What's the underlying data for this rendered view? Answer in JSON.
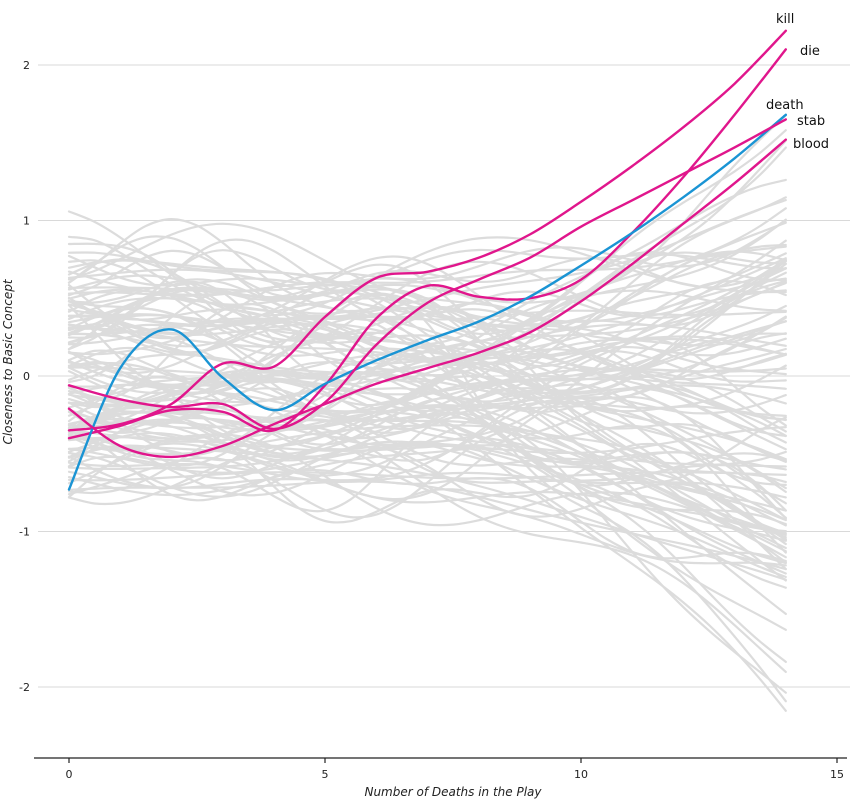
{
  "chart_data": {
    "type": "line",
    "title": "",
    "xlabel": "Number of Deaths in the Play",
    "ylabel": "Closeness to Basic Concept",
    "xlim": [
      -0.7,
      15.2
    ],
    "ylim": [
      -2.45,
      2.4
    ],
    "x_ticks": [
      0,
      5,
      10,
      15
    ],
    "x_tick_labels": [
      "0",
      "5",
      "10",
      "15"
    ],
    "y_ticks": [
      2,
      1,
      0,
      -1,
      -2
    ],
    "y_tick_labels": [
      "2",
      "1",
      "0",
      "-1",
      "-2"
    ],
    "grid": "horizontal",
    "background_color": "#dcdcdc",
    "colors": {
      "highlight": "#e0168c",
      "basic": "#1a94d4"
    },
    "x": [
      0,
      1,
      2,
      3,
      4,
      5,
      6,
      7,
      8,
      9,
      10,
      11,
      12,
      13,
      14
    ],
    "background_series_count": 120,
    "series": [
      {
        "name": "kill",
        "color": "#e0168c",
        "values": [
          -0.35,
          -0.31,
          -0.18,
          0.08,
          0.06,
          0.38,
          0.63,
          0.67,
          0.76,
          0.91,
          1.12,
          1.35,
          1.6,
          1.88,
          2.22
        ]
      },
      {
        "name": "die",
        "color": "#e0168c",
        "values": [
          -0.4,
          -0.32,
          -0.22,
          -0.23,
          -0.35,
          -0.06,
          0.37,
          0.58,
          0.51,
          0.5,
          0.62,
          0.92,
          1.28,
          1.68,
          2.1
        ]
      },
      {
        "name": "death",
        "color": "#1a94d4",
        "values": [
          -0.73,
          0.05,
          0.3,
          -0.01,
          -0.22,
          -0.05,
          0.1,
          0.23,
          0.35,
          0.51,
          0.71,
          0.92,
          1.15,
          1.4,
          1.68
        ]
      },
      {
        "name": "stab",
        "color": "#e0168c",
        "values": [
          -0.06,
          -0.15,
          -0.2,
          -0.18,
          -0.34,
          -0.17,
          0.2,
          0.47,
          0.62,
          0.76,
          0.96,
          1.13,
          1.3,
          1.47,
          1.65
        ]
      },
      {
        "name": "blood",
        "color": "#e0168c",
        "values": [
          -0.21,
          -0.45,
          -0.52,
          -0.45,
          -0.31,
          -0.18,
          -0.05,
          0.05,
          0.15,
          0.28,
          0.48,
          0.72,
          0.98,
          1.24,
          1.52
        ]
      }
    ]
  }
}
